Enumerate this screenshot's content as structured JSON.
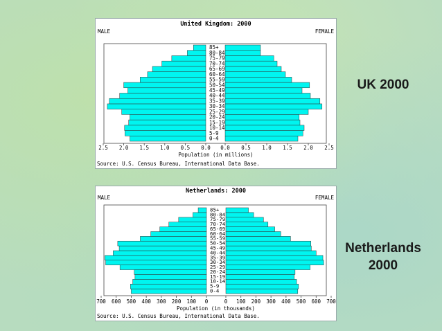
{
  "side_labels": {
    "uk": "UK 2000",
    "nl_line1": "Netherlands",
    "nl_line2": "2000"
  },
  "colors": {
    "bar": "#00f5f0",
    "bar_stroke": "#333333",
    "text": "#000000"
  },
  "chart_data": [
    {
      "type": "bar",
      "orientation": "horizontal-pyramid",
      "title": "United Kingdom: 2000",
      "left_label": "MALE",
      "right_label": "FEMALE",
      "xlabel": "Population (in millions)",
      "source": "Source: U.S. Census Bureau, International Data Base.",
      "xlim": [
        0,
        2.5
      ],
      "ticks_left": [
        "2.5",
        "2.0",
        "1.5",
        "1.0",
        "0.5",
        "0.0"
      ],
      "ticks_right": [
        "0.0",
        "0.5",
        "1.0",
        "1.5",
        "2.0",
        "2.5"
      ],
      "tick_values": [
        2.5,
        2.0,
        1.5,
        1.0,
        0.5,
        0.0
      ],
      "categories": [
        "0-4",
        "5-9",
        "10-14",
        "15-19",
        "20-24",
        "25-29",
        "30-34",
        "35-39",
        "40-44",
        "45-49",
        "50-54",
        "55-59",
        "60-64",
        "65-69",
        "70-74",
        "75-79",
        "80-84",
        "85+"
      ],
      "series": [
        {
          "name": "MALE",
          "values": [
            1.85,
            1.97,
            1.98,
            1.88,
            1.85,
            2.05,
            2.4,
            2.35,
            2.1,
            1.9,
            2.0,
            1.6,
            1.42,
            1.3,
            1.07,
            0.83,
            0.45,
            0.3
          ]
        },
        {
          "name": "FEMALE",
          "values": [
            1.75,
            1.87,
            1.9,
            1.8,
            1.78,
            2.0,
            2.33,
            2.28,
            2.05,
            1.85,
            2.03,
            1.6,
            1.45,
            1.35,
            1.25,
            1.17,
            0.85,
            0.85
          ]
        }
      ]
    },
    {
      "type": "bar",
      "orientation": "horizontal-pyramid",
      "title": "Netherlands: 2000",
      "left_label": "MALE",
      "right_label": "FEMALE",
      "xlabel": "Population (in thousands)",
      "source": "Source: U.S. Census Bureau, International Data Base.",
      "xlim": [
        0,
        700
      ],
      "ticks_left": [
        "700",
        "600",
        "500",
        "400",
        "300",
        "200",
        "100",
        "0"
      ],
      "ticks_right": [
        "0",
        "100",
        "200",
        "300",
        "400",
        "500",
        "600",
        "700"
      ],
      "tick_values": [
        700,
        600,
        500,
        400,
        300,
        200,
        100,
        0
      ],
      "categories": [
        "0-4",
        "5-9",
        "10-14",
        "15-19",
        "20-24",
        "25-29",
        "30-34",
        "35-39",
        "40-44",
        "45-49",
        "50-54",
        "55-59",
        "60-64",
        "65-69",
        "70-74",
        "75-79",
        "80-84",
        "85+"
      ],
      "series": [
        {
          "name": "MALE",
          "values": [
            500,
            505,
            490,
            475,
            480,
            575,
            670,
            675,
            620,
            580,
            590,
            440,
            370,
            310,
            250,
            185,
            90,
            55
          ]
        },
        {
          "name": "FEMALE",
          "values": [
            478,
            483,
            470,
            455,
            460,
            560,
            650,
            645,
            600,
            568,
            565,
            430,
            365,
            325,
            280,
            250,
            185,
            150
          ]
        }
      ]
    }
  ]
}
